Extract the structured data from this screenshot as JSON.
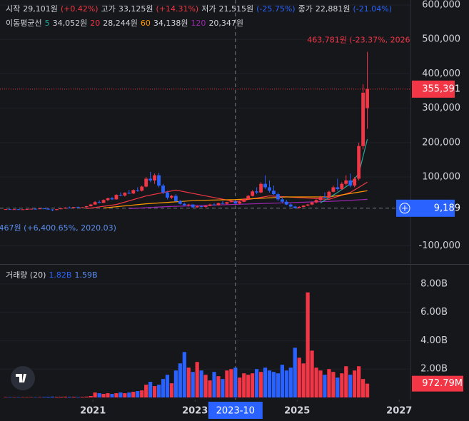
{
  "chart_data": {
    "type": "candlestick",
    "header": [
      {
        "label": "시작",
        "value": "29,101원",
        "change": "(+0.42%)"
      },
      {
        "label": "고가",
        "value": "33,125원",
        "change": "(+14.31%)"
      },
      {
        "label": "저가",
        "value": "21,515원",
        "change": "(-25.75%)"
      },
      {
        "label": "종가",
        "value": "22,881원",
        "change": "(-21.04%)"
      }
    ],
    "ma_legend": {
      "title": "이동평균선",
      "items": [
        {
          "period": "5",
          "value": "34,052원",
          "color": "#26a69a"
        },
        {
          "period": "20",
          "value": "28,244원",
          "color": "#f23645"
        },
        {
          "period": "60",
          "value": "34,138원",
          "color": "#ff9800"
        },
        {
          "period": "120",
          "value": "20,347원",
          "color": "#9c27b0"
        }
      ]
    },
    "up_color": "#f23645",
    "down_color": "#2962ff",
    "x": [
      "2019-04",
      "2019-05",
      "2019-06",
      "2019-07",
      "2019-08",
      "2019-09",
      "2019-10",
      "2019-11",
      "2019-12",
      "2020-01",
      "2020-02",
      "2020-03",
      "2020-04",
      "2020-05",
      "2020-06",
      "2020-07",
      "2020-08",
      "2020-09",
      "2020-10",
      "2020-11",
      "2020-12",
      "2021-01",
      "2021-02",
      "2021-03",
      "2021-04",
      "2021-05",
      "2021-06",
      "2021-07",
      "2021-08",
      "2021-09",
      "2021-10",
      "2021-11",
      "2021-12",
      "2022-01",
      "2022-02",
      "2022-03",
      "2022-04",
      "2022-05",
      "2022-06",
      "2022-07",
      "2022-08",
      "2022-09",
      "2022-10",
      "2022-11",
      "2022-12",
      "2023-01",
      "2023-02",
      "2023-03",
      "2023-04",
      "2023-05",
      "2023-06",
      "2023-07",
      "2023-08",
      "2023-09",
      "2023-10",
      "2023-11",
      "2023-12",
      "2024-01",
      "2024-02",
      "2024-03",
      "2024-04",
      "2024-05",
      "2024-06",
      "2024-07",
      "2024-08",
      "2024-09",
      "2024-10",
      "2024-11",
      "2024-12",
      "2025-01",
      "2025-02",
      "2025-03",
      "2025-04",
      "2025-05",
      "2025-06",
      "2025-07",
      "2025-08",
      "2025-09",
      "2025-10",
      "2025-11",
      "2025-12",
      "2026-01",
      "2026-02",
      "2026-03",
      "2026-04",
      "2026-05"
    ],
    "candles": [
      [
        6000,
        7000,
        5000,
        6500
      ],
      [
        6500,
        7500,
        5500,
        6000
      ],
      [
        6000,
        6800,
        5200,
        6300
      ],
      [
        6300,
        7000,
        5000,
        5500
      ],
      [
        5500,
        6500,
        4800,
        6000
      ],
      [
        6000,
        7200,
        5500,
        6800
      ],
      [
        6800,
        8000,
        6000,
        7500
      ],
      [
        7500,
        8500,
        6500,
        7000
      ],
      [
        7000,
        9000,
        6500,
        8500
      ],
      [
        8500,
        10000,
        7000,
        7500
      ],
      [
        7500,
        8500,
        5000,
        5500
      ],
      [
        5500,
        6500,
        467,
        4000
      ],
      [
        4000,
        7000,
        3500,
        6500
      ],
      [
        6500,
        9000,
        6000,
        8500
      ],
      [
        8500,
        12000,
        8000,
        11000
      ],
      [
        11000,
        14000,
        9000,
        10000
      ],
      [
        10000,
        13000,
        9500,
        12500
      ],
      [
        12500,
        14000,
        10000,
        11000
      ],
      [
        11000,
        13000,
        10000,
        12000
      ],
      [
        12000,
        16000,
        11500,
        15000
      ],
      [
        15000,
        22000,
        14000,
        20000
      ],
      [
        20000,
        30000,
        19000,
        27000
      ],
      [
        27000,
        32000,
        24000,
        25000
      ],
      [
        25000,
        35000,
        24000,
        33000
      ],
      [
        33000,
        40000,
        30000,
        38000
      ],
      [
        38000,
        42000,
        33000,
        35000
      ],
      [
        35000,
        50000,
        34000,
        48000
      ],
      [
        48000,
        55000,
        44000,
        46000
      ],
      [
        46000,
        56000,
        43000,
        54000
      ],
      [
        54000,
        62000,
        50000,
        52000
      ],
      [
        52000,
        64000,
        50000,
        62000
      ],
      [
        62000,
        70000,
        57000,
        60000
      ],
      [
        60000,
        75000,
        58000,
        72000
      ],
      [
        72000,
        100000,
        70000,
        95000
      ],
      [
        95000,
        115000,
        85000,
        90000
      ],
      [
        90000,
        110000,
        80000,
        105000
      ],
      [
        105000,
        112000,
        70000,
        75000
      ],
      [
        75000,
        80000,
        50000,
        55000
      ],
      [
        55000,
        60000,
        35000,
        40000
      ],
      [
        40000,
        48000,
        36000,
        45000
      ],
      [
        45000,
        50000,
        28000,
        30000
      ],
      [
        30000,
        33000,
        20000,
        22000
      ],
      [
        22000,
        26000,
        16000,
        18000
      ],
      [
        18000,
        22000,
        14000,
        20000
      ],
      [
        20000,
        21000,
        10000,
        12000
      ],
      [
        12000,
        16000,
        10000,
        15000
      ],
      [
        15000,
        18000,
        12000,
        13000
      ],
      [
        13000,
        17000,
        11000,
        16000
      ],
      [
        16000,
        22000,
        15000,
        20000
      ],
      [
        20000,
        24000,
        17000,
        18000
      ],
      [
        18000,
        25000,
        17000,
        24000
      ],
      [
        24000,
        30000,
        21000,
        22000
      ],
      [
        22000,
        28000,
        20000,
        27000
      ],
      [
        27000,
        32000,
        26000,
        29000
      ],
      [
        29101,
        33125,
        21515,
        22881
      ],
      [
        22881,
        30000,
        21000,
        28000
      ],
      [
        28000,
        38000,
        27000,
        36000
      ],
      [
        36000,
        48000,
        34000,
        45000
      ],
      [
        45000,
        62000,
        43000,
        58000
      ],
      [
        58000,
        70000,
        50000,
        55000
      ],
      [
        55000,
        85000,
        53000,
        80000
      ],
      [
        80000,
        105000,
        65000,
        70000
      ],
      [
        70000,
        90000,
        55000,
        60000
      ],
      [
        60000,
        75000,
        48000,
        50000
      ],
      [
        50000,
        55000,
        30000,
        35000
      ],
      [
        35000,
        42000,
        25000,
        28000
      ],
      [
        28000,
        33000,
        18000,
        20000
      ],
      [
        20000,
        23000,
        12000,
        14000
      ],
      [
        14000,
        16000,
        8000,
        10000
      ],
      [
        10000,
        15000,
        9000,
        13000
      ],
      [
        13000,
        18000,
        12000,
        17000
      ],
      [
        17000,
        22000,
        15000,
        20000
      ],
      [
        20000,
        28000,
        18000,
        26000
      ],
      [
        26000,
        35000,
        24000,
        33000
      ],
      [
        33000,
        45000,
        30000,
        42000
      ],
      [
        42000,
        55000,
        38000,
        40000
      ],
      [
        40000,
        60000,
        38000,
        57000
      ],
      [
        57000,
        75000,
        55000,
        70000
      ],
      [
        70000,
        95000,
        60000,
        65000
      ],
      [
        65000,
        85000,
        62000,
        80000
      ],
      [
        80000,
        105000,
        75000,
        90000
      ],
      [
        90000,
        110000,
        70000,
        75000
      ],
      [
        75000,
        100000,
        70000,
        95000
      ],
      [
        95000,
        200000,
        90000,
        190000
      ],
      [
        190000,
        370000,
        180000,
        345000
      ],
      [
        300000,
        463781,
        240000,
        355391
      ]
    ],
    "moving_averages": [
      {
        "color": "#f23645",
        "x": [
          "2020-11",
          "2021-06",
          "2022-01",
          "2022-08",
          "2023-03",
          "2023-10",
          "2024-06",
          "2025-01",
          "2025-08",
          "2026-01",
          "2026-05"
        ],
        "values": [
          8000,
          20000,
          45000,
          62000,
          45000,
          28244,
          45000,
          40000,
          35000,
          55000,
          85000
        ]
      },
      {
        "color": "#ff9800",
        "x": [
          "2021-03",
          "2022-01",
          "2023-01",
          "2023-10",
          "2024-10",
          "2025-08",
          "2026-05"
        ],
        "values": [
          10000,
          22000,
          32000,
          34138,
          42000,
          42000,
          60000
        ]
      },
      {
        "color": "#9c27b0",
        "x": [
          "2021-09",
          "2022-06",
          "2023-10",
          "2024-10",
          "2025-10",
          "2026-05"
        ],
        "values": [
          8000,
          14000,
          20347,
          25000,
          30000,
          35000
        ]
      },
      {
        "color": "#26a69a",
        "x": [
          "2025-06",
          "2025-10",
          "2026-01",
          "2026-03",
          "2026-05"
        ],
        "values": [
          25000,
          55000,
          80000,
          110000,
          210000
        ]
      }
    ],
    "xlim": [
      2019.18,
      2027.22
    ],
    "xticks": [
      2021,
      2023,
      2025,
      2027
    ],
    "ylim": [
      -153000,
      614500
    ],
    "yticks": [
      {
        "value": 600000,
        "label": "600,000"
      },
      {
        "value": 500000,
        "label": "500,000"
      },
      {
        "value": 400000,
        "label": "400,000"
      },
      {
        "value": 300000,
        "label": "300,000"
      },
      {
        "value": 200000,
        "label": "200,000"
      },
      {
        "value": 100000,
        "label": "100,000"
      },
      {
        "value": -100000,
        "label": "-100,000"
      }
    ],
    "last_price": {
      "value": 355391,
      "label": "355,391"
    },
    "crosshair": {
      "x": "2023-10",
      "price": {
        "value": 9189,
        "label": "9,189"
      }
    },
    "high_note": {
      "value": 463781,
      "x": "2026-05",
      "label": "463,781원 (-23.37%, 2026"
    },
    "low_note": {
      "value": 467,
      "x": "2020-03",
      "label": "467원 (+6,400.65%, 2020.03)"
    },
    "volume": {
      "title": "거래량 (20)",
      "ma_values": [
        "1.82B",
        "1.59B"
      ],
      "values": [
        0.03,
        0.03,
        0.03,
        0.03,
        0.03,
        0.03,
        0.03,
        0.03,
        0.03,
        0.04,
        0.05,
        0.06,
        0.05,
        0.05,
        0.06,
        0.05,
        0.05,
        0.04,
        0.05,
        0.06,
        0.1,
        0.35,
        0.3,
        0.25,
        0.3,
        0.25,
        0.3,
        0.35,
        0.3,
        0.35,
        0.4,
        0.45,
        0.5,
        0.9,
        1.1,
        0.8,
        0.9,
        1.3,
        1.6,
        1.0,
        1.9,
        2.4,
        3.2,
        2.1,
        1.8,
        2.5,
        1.9,
        1.6,
        1.2,
        1.8,
        1.5,
        1.3,
        1.9,
        2.0,
        2.1,
        1.4,
        1.7,
        1.6,
        1.7,
        2.0,
        1.8,
        2.1,
        1.9,
        1.8,
        1.7,
        2.3,
        1.9,
        2.1,
        3.5,
        2.8,
        2.4,
        7.4,
        3.3,
        2.1,
        1.9,
        1.6,
        2.0,
        1.8,
        1.4,
        1.7,
        2.2,
        1.6,
        1.9,
        2.2,
        1.3,
        0.97279
      ],
      "ylim": [
        -0.15,
        9.4
      ],
      "yticks": [
        {
          "value": 8,
          "label": "8.00B"
        },
        {
          "value": 6,
          "label": "6.00B"
        },
        {
          "value": 4,
          "label": "4.00B"
        },
        {
          "value": 2,
          "label": "2.00B"
        }
      ],
      "last": {
        "value": 0.97279,
        "label": "972.79M"
      }
    }
  }
}
